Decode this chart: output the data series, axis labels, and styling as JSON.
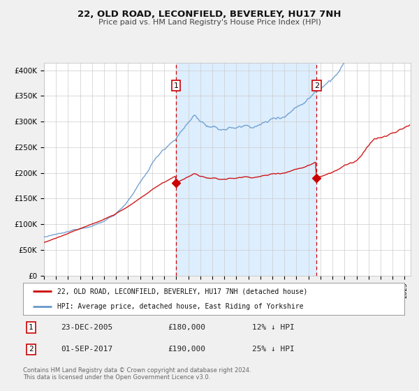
{
  "title": "22, OLD ROAD, LECONFIELD, BEVERLEY, HU17 7NH",
  "subtitle": "Price paid vs. HM Land Registry's House Price Index (HPI)",
  "ylabel_ticks": [
    "£0",
    "£50K",
    "£100K",
    "£150K",
    "£200K",
    "£250K",
    "£300K",
    "£350K",
    "£400K"
  ],
  "ytick_values": [
    0,
    50000,
    100000,
    150000,
    200000,
    250000,
    300000,
    350000,
    400000
  ],
  "ylim": [
    0,
    415000
  ],
  "xlim_start": 1995.0,
  "xlim_end": 2025.5,
  "marker1_x": 2005.98,
  "marker1_y": 180000,
  "marker2_x": 2017.67,
  "marker2_y": 190000,
  "marker1_label": "1",
  "marker2_label": "2",
  "sale1_date": "23-DEC-2005",
  "sale1_price": "£180,000",
  "sale1_hpi": "12% ↓ HPI",
  "sale2_date": "01-SEP-2017",
  "sale2_price": "£190,000",
  "sale2_hpi": "25% ↓ HPI",
  "legend_line1": "22, OLD ROAD, LECONFIELD, BEVERLEY, HU17 7NH (detached house)",
  "legend_line2": "HPI: Average price, detached house, East Riding of Yorkshire",
  "footer1": "Contains HM Land Registry data © Crown copyright and database right 2024.",
  "footer2": "This data is licensed under the Open Government Licence v3.0.",
  "line_color_sale": "#cc0000",
  "line_color_hpi": "#6699cc",
  "shaded_region_color": "#ddeeff",
  "background_color": "#f0f0f0",
  "plot_bg_color": "#ffffff",
  "grid_color": "#cccccc",
  "vline_color": "#cc0000"
}
